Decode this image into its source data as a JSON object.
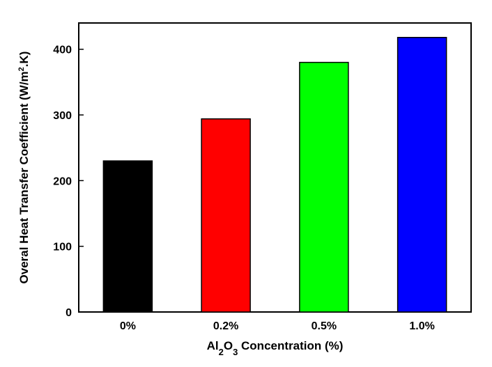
{
  "chart_data": {
    "type": "bar",
    "categories": [
      "0%",
      "0.2%",
      "0.5%",
      "1.0%"
    ],
    "values": [
      230,
      294,
      380,
      418
    ],
    "colors": [
      "#000000",
      "#ff0000",
      "#00ff00",
      "#0000ff"
    ],
    "title": "",
    "xlabel": {
      "prefix": "Al",
      "sub1": "2",
      "mid": "O",
      "sub2": "3",
      "suffix": " Concentration (%)"
    },
    "ylabel": {
      "prefix": "Overal Heat Transfer Coefficient (W/m",
      "sup": "2",
      "suffix": ".K)"
    },
    "ylim": [
      0,
      440
    ],
    "yticks": [
      0,
      100,
      200,
      300,
      400
    ],
    "grid": false,
    "legend": "none"
  }
}
